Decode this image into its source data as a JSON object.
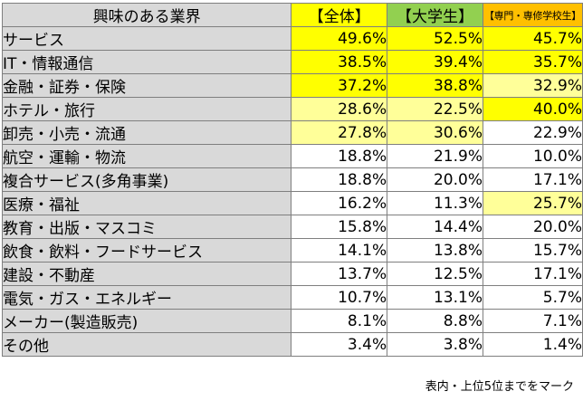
{
  "chart_data": {
    "type": "table",
    "columns": [
      "興味のある業界",
      "【全体】",
      "【大学生】",
      "【専門・専修学校生】"
    ],
    "rows": [
      {
        "label": "サービス",
        "values": [
          "49.6%",
          "52.5%",
          "45.7%"
        ],
        "highlight": [
          1,
          1,
          1
        ]
      },
      {
        "label": "IT・情報通信",
        "values": [
          "38.5%",
          "39.4%",
          "35.7%"
        ],
        "highlight": [
          1,
          1,
          1
        ]
      },
      {
        "label": "金融・証券・保険",
        "values": [
          "37.2%",
          "38.8%",
          "32.9%"
        ],
        "highlight": [
          1,
          1,
          2
        ]
      },
      {
        "label": "ホテル・旅行",
        "values": [
          "28.6%",
          "22.5%",
          "40.0%"
        ],
        "highlight": [
          2,
          2,
          1
        ]
      },
      {
        "label": "卸売・小売・流通",
        "values": [
          "27.8%",
          "30.6%",
          "22.9%"
        ],
        "highlight": [
          2,
          2,
          0
        ]
      },
      {
        "label": "航空・運輸・物流",
        "values": [
          "18.8%",
          "21.9%",
          "10.0%"
        ],
        "highlight": [
          0,
          0,
          0
        ]
      },
      {
        "label": "複合サービス(多角事業)",
        "values": [
          "18.8%",
          "20.0%",
          "17.1%"
        ],
        "highlight": [
          0,
          0,
          0
        ]
      },
      {
        "label": "医療・福祉",
        "values": [
          "16.2%",
          "11.3%",
          "25.7%"
        ],
        "highlight": [
          0,
          0,
          2
        ]
      },
      {
        "label": "教育・出版・マスコミ",
        "values": [
          "15.8%",
          "14.4%",
          "20.0%"
        ],
        "highlight": [
          0,
          0,
          0
        ]
      },
      {
        "label": "飲食・飲料・フードサービス",
        "values": [
          "14.1%",
          "13.8%",
          "15.7%"
        ],
        "highlight": [
          0,
          0,
          0
        ]
      },
      {
        "label": "建設・不動産",
        "values": [
          "13.7%",
          "12.5%",
          "17.1%"
        ],
        "highlight": [
          0,
          0,
          0
        ]
      },
      {
        "label": "電気・ガス・エネルギー",
        "values": [
          "10.7%",
          "13.1%",
          "5.7%"
        ],
        "highlight": [
          0,
          0,
          0
        ]
      },
      {
        "label": "メーカー(製造販売)",
        "values": [
          "8.1%",
          "8.8%",
          "7.1%"
        ],
        "highlight": [
          0,
          0,
          0
        ]
      },
      {
        "label": "その他",
        "values": [
          "3.4%",
          "3.8%",
          "1.4%"
        ],
        "highlight": [
          0,
          0,
          0
        ]
      }
    ],
    "colors": {
      "header_label_bg": "#d9d9d9",
      "header_all_bg": "#ffff00",
      "header_univ_bg": "#92d050",
      "header_voc_bg": "#ffc000",
      "highlight_strong": "#ffff00",
      "highlight_light": "#ffff99"
    },
    "note": "表内・上位5位までをマーク"
  }
}
